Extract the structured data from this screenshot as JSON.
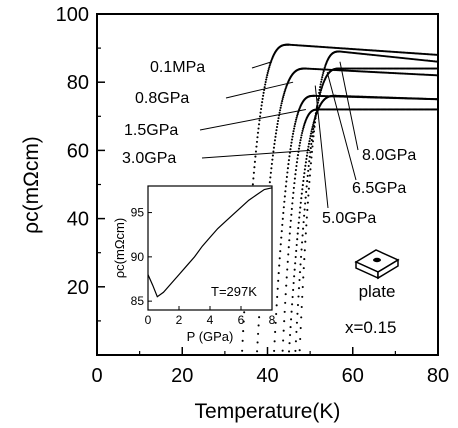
{
  "chart_data": {
    "type": "scatter",
    "xlabel": "Temperature(K)",
    "ylabel": "ρc(mΩcm)",
    "xlim": [
      0,
      80
    ],
    "ylim": [
      0,
      100
    ],
    "xticks": [
      "0",
      "20",
      "40",
      "60",
      "80"
    ],
    "yticks": [
      "20",
      "40",
      "60",
      "80",
      "100"
    ],
    "series": [
      {
        "name": "0.1MPa",
        "tc": 37.5,
        "width": 3.5,
        "peak_t": 45,
        "peak_v": 91,
        "end_v": 88
      },
      {
        "name": "0.8GPa",
        "tc": 41.0,
        "width": 3.5,
        "peak_t": 49,
        "peak_v": 84,
        "end_v": 82
      },
      {
        "name": "1.5GPa",
        "tc": 44.5,
        "width": 3.0,
        "peak_t": 51,
        "peak_v": 76,
        "end_v": 75
      },
      {
        "name": "3.0GPa",
        "tc": 46.5,
        "width": 3.0,
        "peak_t": 52,
        "peak_v": 72,
        "end_v": 72
      },
      {
        "name": "5.0GPa",
        "tc": 48.0,
        "width": 3.0,
        "peak_t": 56,
        "peak_v": 76,
        "end_v": 75
      },
      {
        "name": "6.5GPa",
        "tc": 49.5,
        "width": 3.0,
        "peak_t": 57,
        "peak_v": 84,
        "end_v": 84
      },
      {
        "name": "8.0GPa",
        "tc": 50.5,
        "width": 3.0,
        "peak_t": 57,
        "peak_v": 89,
        "end_v": 86
      }
    ],
    "annotations": {
      "composition": "x=0.15",
      "sample": "plate"
    },
    "inset": {
      "xlabel": "P (GPa)",
      "ylabel": "ρc(mΩcm)",
      "xlim": [
        0,
        8
      ],
      "ylim": [
        84,
        98
      ],
      "xticks": [
        "0",
        "2",
        "4",
        "6",
        "8"
      ],
      "yticks": [
        "85",
        "90",
        "95"
      ],
      "annotation": "T=297K",
      "points": [
        [
          0,
          88
        ],
        [
          0.3,
          86.8
        ],
        [
          0.6,
          85.5
        ],
        [
          1.0,
          86.0
        ],
        [
          1.5,
          87.0
        ],
        [
          2.0,
          88.0
        ],
        [
          2.5,
          89.0
        ],
        [
          3.0,
          90.0
        ],
        [
          3.5,
          91.2
        ],
        [
          4.0,
          92.2
        ],
        [
          4.5,
          93.2
        ],
        [
          5.0,
          94.0
        ],
        [
          5.5,
          94.8
        ],
        [
          6.0,
          95.6
        ],
        [
          6.5,
          96.4
        ],
        [
          7.0,
          97.0
        ],
        [
          7.5,
          97.6
        ],
        [
          8.0,
          97.8
        ]
      ]
    }
  }
}
